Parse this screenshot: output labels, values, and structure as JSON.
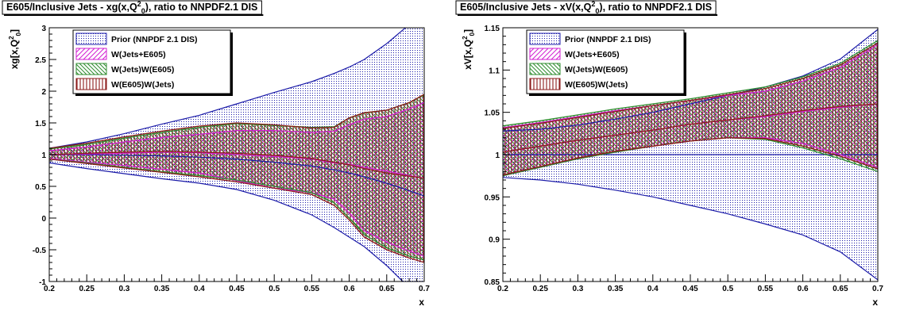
{
  "colors": {
    "prior": "#1a1aa8",
    "jetsE605": "#d21fd2",
    "jetsW_E605": "#2e8b2e",
    "e605W_jets": "#8b1a1a"
  },
  "chart_data": [
    {
      "type": "area",
      "title": "E605/Inclusive Jets - xg(x,Q",
      "title_sub": "0",
      "title_sup": "2",
      "title_suffix": "), ratio to NNPDF2.1 DIS",
      "xlabel": "x",
      "ylabel": "xg[x,Q",
      "ylabel_sub": "0",
      "ylabel_sup": "2",
      "ylabel_suffix": "]",
      "xlim": [
        0.2,
        0.7
      ],
      "ylim": [
        -1,
        3
      ],
      "xticks": [
        "0.2",
        "0.25",
        "0.3",
        "0.35",
        "0.4",
        "0.45",
        "0.5",
        "0.55",
        "0.6",
        "0.65",
        "0.7"
      ],
      "yticks": [
        "-1",
        "-0.5",
        "0",
        "0.5",
        "1",
        "1.5",
        "2",
        "2.5",
        "3"
      ],
      "legend_position": "top-left",
      "x": [
        0.2,
        0.25,
        0.3,
        0.35,
        0.4,
        0.45,
        0.5,
        0.55,
        0.58,
        0.6,
        0.62,
        0.65,
        0.68,
        0.7
      ],
      "series": [
        {
          "name": "Prior (NNPDF 2.1 DIS)",
          "style": "dots",
          "upper": [
            1.1,
            1.2,
            1.33,
            1.48,
            1.62,
            1.8,
            1.98,
            2.15,
            2.28,
            2.38,
            2.5,
            2.75,
            3.05,
            3.3
          ],
          "center": [
            1.0,
            1.0,
            0.99,
            0.98,
            0.96,
            0.93,
            0.88,
            0.82,
            0.76,
            0.71,
            0.65,
            0.55,
            0.43,
            0.35
          ],
          "lower": [
            0.87,
            0.78,
            0.7,
            0.62,
            0.55,
            0.45,
            0.28,
            0.05,
            -0.15,
            -0.3,
            -0.45,
            -0.75,
            -1.1,
            -1.35
          ]
        },
        {
          "name": "W(Jets+E605)",
          "style": "diag",
          "upper": [
            1.06,
            1.12,
            1.2,
            1.27,
            1.32,
            1.38,
            1.38,
            1.35,
            1.37,
            1.47,
            1.56,
            1.6,
            1.72,
            1.82
          ],
          "center": [
            1.0,
            1.01,
            1.02,
            1.04,
            1.03,
            1.0,
            0.97,
            0.93,
            0.87,
            0.85,
            0.8,
            0.74,
            0.67,
            0.63
          ],
          "lower": [
            0.94,
            0.88,
            0.83,
            0.77,
            0.71,
            0.59,
            0.47,
            0.4,
            0.3,
            0.08,
            -0.2,
            -0.38,
            -0.52,
            -0.6
          ]
        },
        {
          "name": "W(Jets)W(E605)",
          "style": "anti",
          "upper": [
            1.09,
            1.16,
            1.26,
            1.35,
            1.43,
            1.49,
            1.46,
            1.43,
            1.44,
            1.58,
            1.66,
            1.7,
            1.82,
            1.94
          ],
          "lower": [
            0.93,
            0.87,
            0.8,
            0.73,
            0.67,
            0.6,
            0.5,
            0.4,
            0.24,
            0.0,
            -0.26,
            -0.47,
            -0.6,
            -0.66
          ]
        },
        {
          "name": "W(E605)W(Jets)",
          "style": "vert",
          "upper": [
            1.1,
            1.18,
            1.28,
            1.37,
            1.45,
            1.5,
            1.47,
            1.42,
            1.43,
            1.58,
            1.66,
            1.7,
            1.82,
            1.95
          ],
          "center": [
            1.0,
            1.02,
            1.04,
            1.05,
            1.04,
            1.02,
            0.99,
            0.94,
            0.88,
            0.84,
            0.78,
            0.71,
            0.66,
            0.63
          ],
          "lower": [
            0.93,
            0.86,
            0.79,
            0.72,
            0.65,
            0.57,
            0.47,
            0.37,
            0.2,
            -0.03,
            -0.3,
            -0.5,
            -0.63,
            -0.7
          ]
        }
      ]
    },
    {
      "type": "area",
      "title": "E605/Inclusive Jets - xV(x,Q",
      "title_sub": "0",
      "title_sup": "2",
      "title_suffix": "), ratio to NNPDF2.1 DIS",
      "xlabel": "x",
      "ylabel": "xV[x,Q",
      "ylabel_sub": "0",
      "ylabel_sup": "2",
      "ylabel_suffix": "]",
      "xlim": [
        0.2,
        0.7
      ],
      "ylim": [
        0.85,
        1.15
      ],
      "xticks": [
        "0.2",
        "0.25",
        "0.3",
        "0.35",
        "0.4",
        "0.45",
        "0.5",
        "0.55",
        "0.6",
        "0.65",
        "0.7"
      ],
      "yticks": [
        "0.85",
        "0.9",
        "0.95",
        "1",
        "1.05",
        "1.1",
        "1.15"
      ],
      "legend_position": "top-left",
      "x": [
        0.2,
        0.25,
        0.3,
        0.35,
        0.4,
        0.45,
        0.5,
        0.55,
        0.6,
        0.65,
        0.7
      ],
      "series": [
        {
          "name": "Prior (NNPDF 2.1 DIS)",
          "style": "dots",
          "upper": [
            1.028,
            1.03,
            1.035,
            1.042,
            1.05,
            1.06,
            1.07,
            1.08,
            1.093,
            1.113,
            1.148
          ],
          "center": [
            1.0,
            1.0,
            1.0,
            1.0,
            1.0,
            1.0,
            1.0,
            1.0,
            1.0,
            1.0,
            1.0
          ],
          "lower": [
            0.973,
            0.97,
            0.965,
            0.958,
            0.95,
            0.94,
            0.93,
            0.918,
            0.905,
            0.885,
            0.852
          ]
        },
        {
          "name": "W(Jets+E605)",
          "style": "diag",
          "upper": [
            1.032,
            1.038,
            1.045,
            1.052,
            1.058,
            1.064,
            1.07,
            1.075,
            1.087,
            1.103,
            1.13
          ],
          "center": [
            1.003,
            1.01,
            1.017,
            1.023,
            1.029,
            1.036,
            1.041,
            1.045,
            1.051,
            1.056,
            1.06
          ],
          "lower": [
            0.975,
            0.985,
            0.995,
            1.003,
            1.01,
            1.016,
            1.02,
            1.02,
            1.013,
            1.0,
            0.985
          ]
        },
        {
          "name": "W(Jets)W(E605)",
          "style": "anti",
          "upper": [
            1.034,
            1.04,
            1.047,
            1.054,
            1.06,
            1.066,
            1.073,
            1.08,
            1.092,
            1.108,
            1.135
          ],
          "lower": [
            0.975,
            0.985,
            0.995,
            1.003,
            1.01,
            1.016,
            1.02,
            1.018,
            1.008,
            0.995,
            0.98
          ]
        },
        {
          "name": "W(E605)W(Jets)",
          "style": "vert",
          "upper": [
            1.031,
            1.037,
            1.044,
            1.051,
            1.058,
            1.064,
            1.071,
            1.078,
            1.09,
            1.106,
            1.132
          ],
          "center": [
            1.003,
            1.01,
            1.017,
            1.023,
            1.029,
            1.036,
            1.041,
            1.046,
            1.052,
            1.057,
            1.06
          ],
          "lower": [
            0.976,
            0.986,
            0.996,
            1.004,
            1.01,
            1.016,
            1.02,
            1.019,
            1.01,
            0.998,
            0.983
          ]
        }
      ]
    }
  ]
}
